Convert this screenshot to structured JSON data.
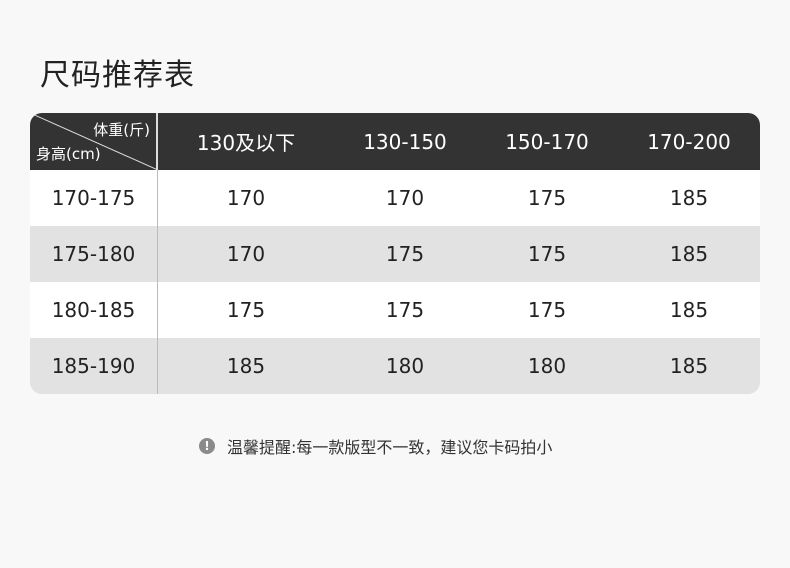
{
  "title": "尺码推荐表",
  "table": {
    "corner": {
      "weight_label": "体重(斤)",
      "height_label": "身高(cm)"
    },
    "columns": [
      "130及以下",
      "130-150",
      "150-170",
      "170-200"
    ],
    "rows": [
      {
        "height": "170-175",
        "values": [
          "170",
          "170",
          "175",
          "185"
        ]
      },
      {
        "height": "175-180",
        "values": [
          "170",
          "175",
          "175",
          "185"
        ]
      },
      {
        "height": "180-185",
        "values": [
          "175",
          "175",
          "175",
          "185"
        ]
      },
      {
        "height": "185-190",
        "values": [
          "185",
          "180",
          "180",
          "185"
        ]
      }
    ]
  },
  "note": {
    "icon": "exclamation-circle-icon",
    "text": "温馨提醒:每一款版型不一致，建议您卡码拍小"
  },
  "colors": {
    "header_bg": "#333333",
    "stripe": "#e2e2e2"
  }
}
